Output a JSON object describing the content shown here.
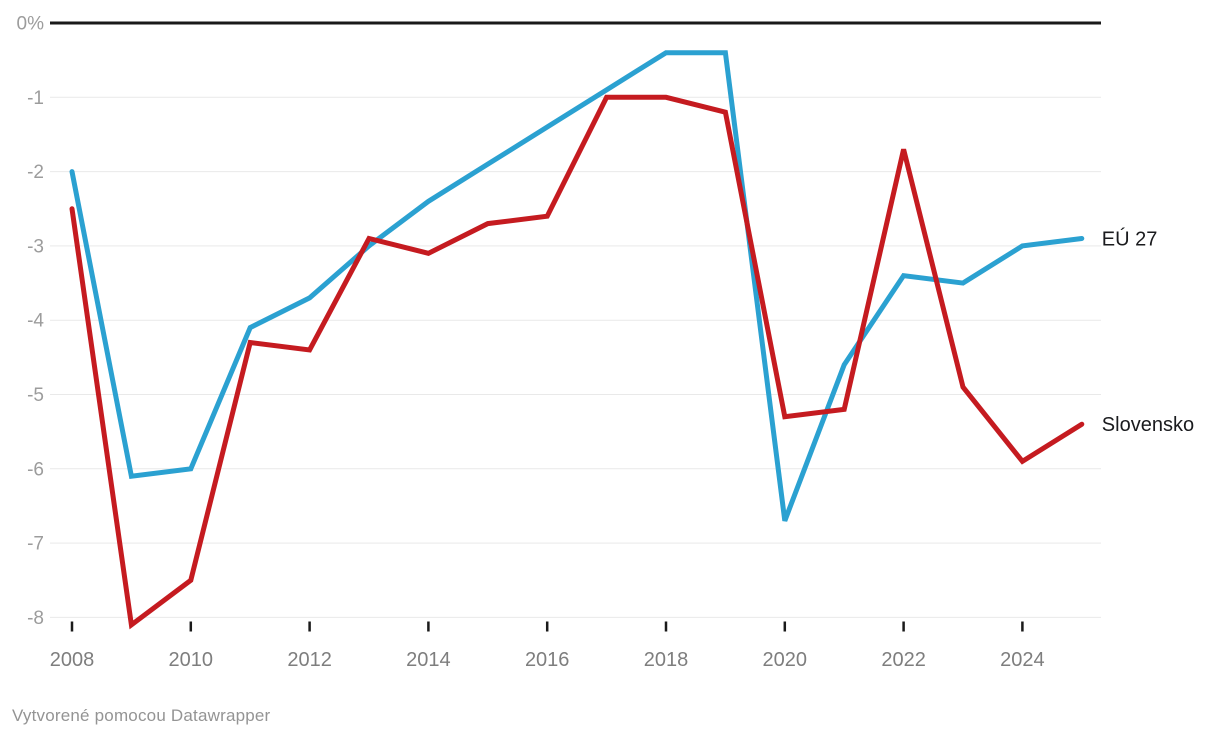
{
  "chart_data": {
    "type": "line",
    "x": [
      2008,
      2009,
      2010,
      2011,
      2012,
      2013,
      2014,
      2015,
      2016,
      2017,
      2018,
      2019,
      2020,
      2021,
      2022,
      2023,
      2024,
      2025
    ],
    "series": [
      {
        "name": "EÚ 27",
        "color": "#2ba1d1",
        "values": [
          -2.0,
          -6.1,
          -6.0,
          -4.1,
          -3.7,
          -3.0,
          -2.4,
          -1.9,
          -1.4,
          -0.9,
          -0.4,
          -0.4,
          -6.7,
          -4.6,
          -3.4,
          -3.5,
          -3.0,
          -2.9
        ]
      },
      {
        "name": "Slovensko",
        "color": "#c51b20",
        "values": [
          -2.5,
          -8.1,
          -7.5,
          -4.3,
          -4.4,
          -2.9,
          -3.1,
          -2.7,
          -2.6,
          -1.0,
          -1.0,
          -1.2,
          -5.3,
          -5.2,
          -1.7,
          -4.9,
          -5.9,
          -5.4
        ]
      }
    ],
    "title": "",
    "xlabel": "",
    "ylabel": "",
    "unit": "%",
    "ylim": [
      -8.5,
      0
    ],
    "y_ticks": [
      0,
      -1,
      -2,
      -3,
      -4,
      -5,
      -6,
      -7,
      -8
    ],
    "y_tick_labels": [
      "0%",
      "-1",
      "-2",
      "-3",
      "-4",
      "-5",
      "-6",
      "-7",
      "-8"
    ],
    "x_tick_years": [
      2008,
      2010,
      2012,
      2014,
      2016,
      2018,
      2020,
      2022,
      2024
    ],
    "grid": "horizontal",
    "zero_baseline": true,
    "legend_position": "line-end-labels"
  },
  "footer": {
    "text": "Vytvorené pomocou Datawrapper"
  },
  "colors": {
    "eu_line": "#2ba1d1",
    "slovensko_line": "#c51b20",
    "zero_line": "#1a1a1a",
    "gridline": "#e9e9e9",
    "tick_mark": "#1a1a1a",
    "y_axis_text": "#9c9c9c",
    "x_axis_text": "#7e7e7e",
    "series_label_text": "#1a1b1e",
    "footer_text": "#949494",
    "background": "#ffffff"
  }
}
